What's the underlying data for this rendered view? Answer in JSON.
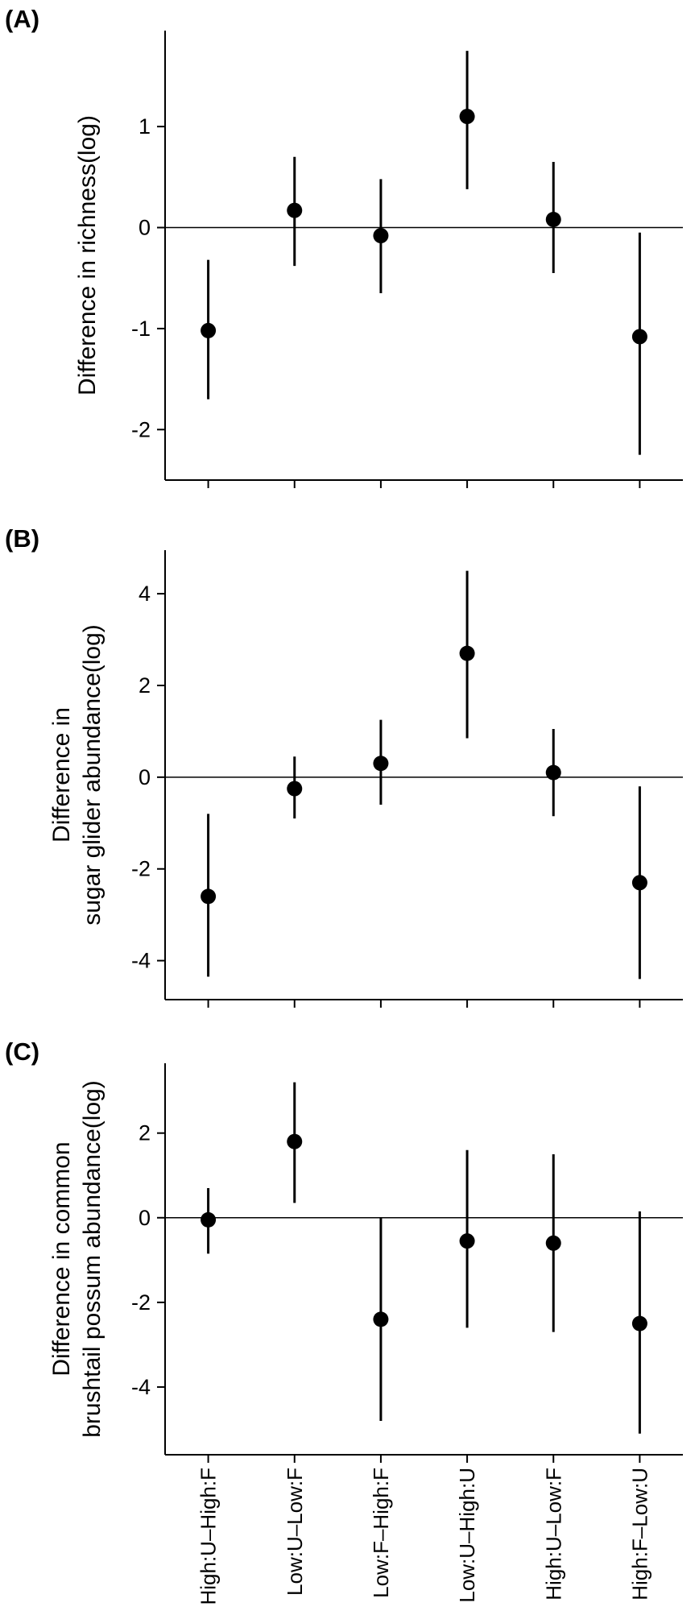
{
  "figure": {
    "background": "#ffffff",
    "axis_color": "#000000",
    "point_color": "#000000",
    "error_bar_color": "#000000"
  },
  "chart_data": [
    {
      "type": "scatter",
      "panel_label": "(A)",
      "ylabel": "Difference in richness(log)",
      "ylabel_lines": [
        "Difference in richness(log)"
      ],
      "categories": [
        "High:U–High:F",
        "Low:U–Low:F",
        "Low:F–High:F",
        "Low:U–High:U",
        "High:U–Low:F",
        "High:F–Low:U"
      ],
      "values": [
        -1.02,
        0.17,
        -0.08,
        1.1,
        0.08,
        -1.08
      ],
      "ci_lower": [
        -1.7,
        -0.38,
        -0.65,
        0.38,
        -0.45,
        -2.25
      ],
      "ci_upper": [
        -0.32,
        0.7,
        0.48,
        1.75,
        0.65,
        -0.05
      ],
      "yticks": [
        -2,
        -1,
        0,
        1
      ],
      "ylim": [
        -2.5,
        1.95
      ],
      "reference_line": 0,
      "grid": false,
      "legend": false,
      "show_x_labels": false
    },
    {
      "type": "scatter",
      "panel_label": "(B)",
      "ylabel": "Difference in sugar glider abundance(log)",
      "ylabel_lines": [
        "Difference in",
        "sugar glider abundance(log)"
      ],
      "categories": [
        "High:U–High:F",
        "Low:U–Low:F",
        "Low:F–High:F",
        "Low:U–High:U",
        "High:U–Low:F",
        "High:F–Low:U"
      ],
      "values": [
        -2.6,
        -0.25,
        0.3,
        2.7,
        0.1,
        -2.3
      ],
      "ci_lower": [
        -4.35,
        -0.9,
        -0.6,
        0.85,
        -0.85,
        -4.4
      ],
      "ci_upper": [
        -0.8,
        0.45,
        1.25,
        4.5,
        1.05,
        -0.2
      ],
      "yticks": [
        -4,
        -2,
        0,
        2,
        4
      ],
      "ylim": [
        -4.85,
        4.95
      ],
      "reference_line": 0,
      "grid": false,
      "legend": false,
      "show_x_labels": false
    },
    {
      "type": "scatter",
      "panel_label": "(C)",
      "ylabel": "Difference in common brushtail possum abundance(log)",
      "ylabel_lines": [
        "Difference in common",
        "brushtail possum abundance(log)"
      ],
      "categories": [
        "High:U–High:F",
        "Low:U–Low:F",
        "Low:F–High:F",
        "Low:U–High:U",
        "High:U–Low:F",
        "High:F–Low:U"
      ],
      "values": [
        -0.05,
        1.8,
        -2.4,
        -0.55,
        -0.6,
        -2.5
      ],
      "ci_lower": [
        -0.85,
        0.35,
        -4.8,
        -2.6,
        -2.7,
        -5.1
      ],
      "ci_upper": [
        0.7,
        3.2,
        0.0,
        1.6,
        1.5,
        0.15
      ],
      "yticks": [
        -4,
        -2,
        0,
        2
      ],
      "ylim": [
        -5.6,
        3.65
      ],
      "reference_line": 0,
      "grid": false,
      "legend": false,
      "show_x_labels": true
    }
  ]
}
